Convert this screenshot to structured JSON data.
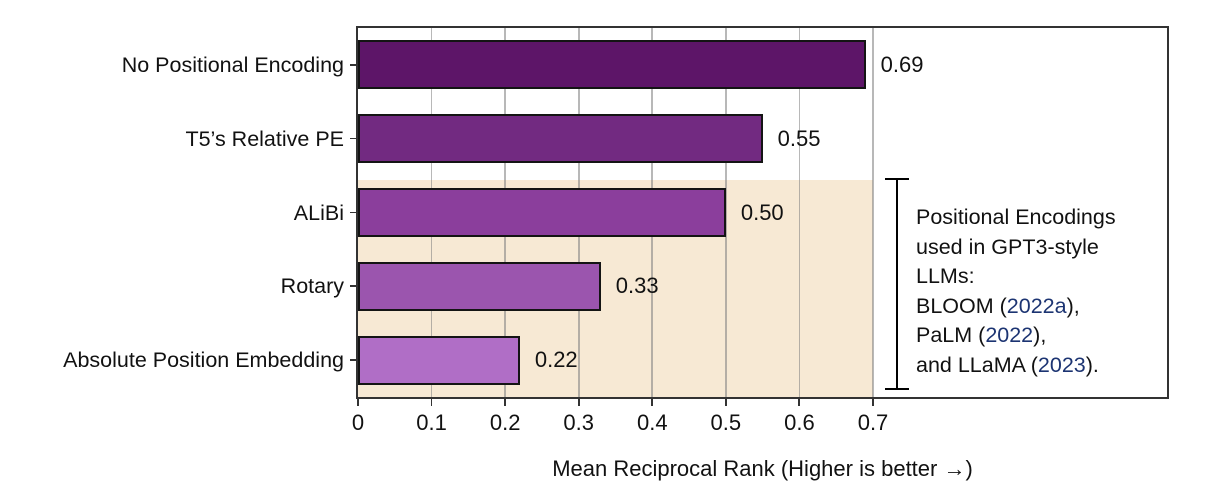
{
  "chart_data": {
    "type": "bar",
    "orientation": "horizontal",
    "title": "",
    "xlabel": "Mean Reciprocal Rank (Higher is better →)",
    "ylabel": "",
    "xlim": [
      0,
      0.7
    ],
    "grid": "vertical-gridlines-on",
    "legend": "none",
    "categories": [
      "No Positional Encoding",
      "T5’s Relative PE",
      "ALiBi",
      "Rotary",
      "Absolute Position Embedding"
    ],
    "values": [
      0.69,
      0.55,
      0.5,
      0.33,
      0.22
    ],
    "value_labels": [
      "0.69",
      "0.55",
      "0.50",
      "0.33",
      "0.22"
    ],
    "bar_colors": [
      "#5d1568",
      "#722a81",
      "#8b3e9c",
      "#9b55ae",
      "#b06ec6"
    ],
    "bar_border_color": "#141414",
    "xticks": [
      "0",
      "0.1",
      "0.2",
      "0.3",
      "0.4",
      "0.5",
      "0.6",
      "0.7"
    ],
    "xtick_values": [
      0,
      0.1,
      0.2,
      0.3,
      0.4,
      0.5,
      0.6,
      0.7
    ],
    "highlight_region": {
      "description": "shaded band behind the bottom three categories",
      "category_start_index": 2,
      "category_end_index": 4,
      "x_start": 0,
      "x_end": 0.7,
      "color": "#f7e9d4"
    },
    "annotation": {
      "bracket": "vertical I-beam bracket spanning the shaded band",
      "cite_color": "#1c3472",
      "lines": [
        [
          {
            "text": "Positional Encodings",
            "cite": false
          }
        ],
        [
          {
            "text": "used in GPT3-style",
            "cite": false
          }
        ],
        [
          {
            "text": "LLMs:",
            "cite": false
          }
        ],
        [
          {
            "text": "BLOOM (",
            "cite": false
          },
          {
            "text": "2022a",
            "cite": true
          },
          {
            "text": "),",
            "cite": false
          }
        ],
        [
          {
            "text": "PaLM (",
            "cite": false
          },
          {
            "text": "2022",
            "cite": true
          },
          {
            "text": "),",
            "cite": false
          }
        ],
        [
          {
            "text": "and LLaMA (",
            "cite": false
          },
          {
            "text": "2023",
            "cite": true
          },
          {
            "text": ").",
            "cite": false
          }
        ]
      ]
    }
  }
}
